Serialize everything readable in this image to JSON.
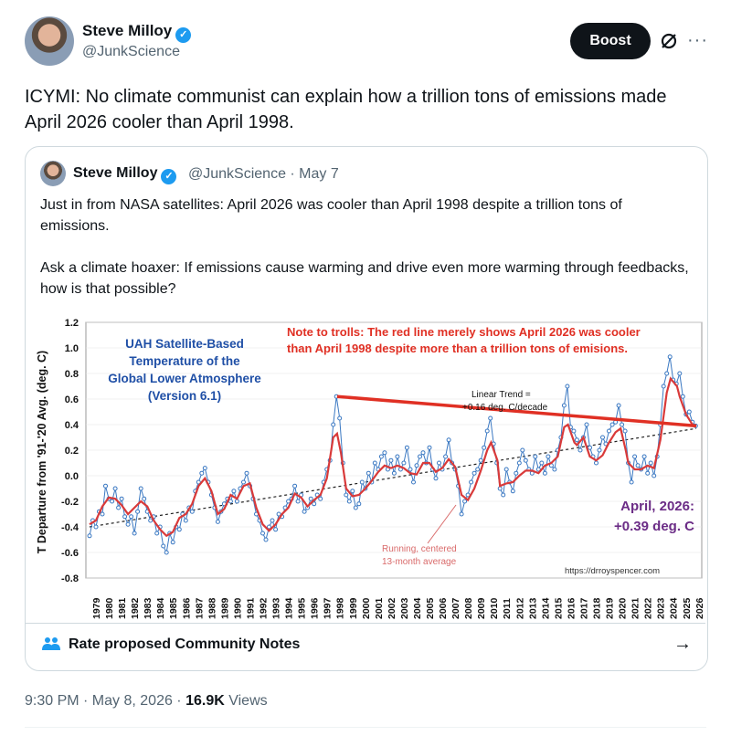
{
  "post": {
    "author_name": "Steve Milloy",
    "handle": "@JunkScience",
    "boost_label": "Boost",
    "more_label": "···",
    "text": "ICYMI: No climate communist can explain how a trillion tons of emissions made April 2026 cooler than April 1998."
  },
  "quote": {
    "author_name": "Steve Milloy",
    "handle_date": "@JunkScience · May 7",
    "text_p1": "Just in from NASA satellites: April 2026 was cooler than April 1998 despite a trillion tons of emissions.",
    "text_p2": "Ask a climate hoaxer: If emissions cause warming and drive even more warming through feedbacks, how is that possible?"
  },
  "chart_data": {
    "type": "line",
    "title": "UAH Satellite-Based Temperature of the Global Lower Atmosphere (Version 6.1)",
    "title_lines": [
      "UAH Satellite-Based",
      "Temperature of the",
      "Global Lower Atmosphere",
      "(Version 6.1)"
    ],
    "ylabel": "T Departure from '91-'20 Avg. (deg. C)",
    "ylim": [
      -0.8,
      1.2
    ],
    "y_ticks": [
      "1.2",
      "1.0",
      "0.8",
      "0.6",
      "0.4",
      "0.2",
      "0.0",
      "-0.2",
      "-0.4",
      "-0.6",
      "-0.8"
    ],
    "x_ticks": [
      "1979",
      "1980",
      "1981",
      "1982",
      "1983",
      "1984",
      "1985",
      "1986",
      "1987",
      "1988",
      "1989",
      "1990",
      "1991",
      "1992",
      "1993",
      "1994",
      "1995",
      "1996",
      "1997",
      "1998",
      "1999",
      "2000",
      "2001",
      "2002",
      "2003",
      "2004",
      "2005",
      "2006",
      "2007",
      "2008",
      "2009",
      "2010",
      "2011",
      "2012",
      "2013",
      "2014",
      "2015",
      "2016",
      "2017",
      "2018",
      "2019",
      "2020",
      "2021",
      "2022",
      "2023",
      "2024",
      "2025",
      "2026"
    ],
    "note_line1": "Note to trolls: The red line merely shows April 2026 was cooler",
    "note_line2": "than April 1998 despite more than a trillion tons of emisions.",
    "trend_label_1": "Linear Trend =",
    "trend_label_2": "+0.16 deg. C/decade",
    "running_label_1": "Running, centered",
    "running_label_2": "13-month average",
    "latest_label_1": "April, 2026:",
    "latest_label_2": "+0.39 deg. C",
    "credit": "https://drroyspencer.com",
    "trend_line": [
      [
        1979.0,
        -0.4
      ],
      [
        2026.3,
        0.37
      ]
    ],
    "red_line": [
      [
        1998.3,
        0.62
      ],
      [
        2026.3,
        0.39
      ]
    ],
    "running_mean": [
      [
        1979.0,
        -0.38
      ],
      [
        1979.5,
        -0.35
      ],
      [
        1980.0,
        -0.24
      ],
      [
        1980.5,
        -0.17
      ],
      [
        1981.0,
        -0.18
      ],
      [
        1981.5,
        -0.23
      ],
      [
        1982.0,
        -0.3
      ],
      [
        1982.5,
        -0.25
      ],
      [
        1983.0,
        -0.2
      ],
      [
        1983.5,
        -0.24
      ],
      [
        1984.0,
        -0.35
      ],
      [
        1984.5,
        -0.42
      ],
      [
        1985.0,
        -0.47
      ],
      [
        1985.5,
        -0.44
      ],
      [
        1986.0,
        -0.33
      ],
      [
        1986.5,
        -0.3
      ],
      [
        1987.0,
        -0.22
      ],
      [
        1987.5,
        -0.08
      ],
      [
        1988.0,
        -0.02
      ],
      [
        1988.5,
        -0.12
      ],
      [
        1989.0,
        -0.3
      ],
      [
        1989.5,
        -0.26
      ],
      [
        1990.0,
        -0.15
      ],
      [
        1990.5,
        -0.18
      ],
      [
        1991.0,
        -0.08
      ],
      [
        1991.5,
        -0.06
      ],
      [
        1992.0,
        -0.25
      ],
      [
        1992.5,
        -0.38
      ],
      [
        1993.0,
        -0.43
      ],
      [
        1993.5,
        -0.38
      ],
      [
        1994.0,
        -0.3
      ],
      [
        1994.5,
        -0.25
      ],
      [
        1995.0,
        -0.14
      ],
      [
        1995.5,
        -0.17
      ],
      [
        1996.0,
        -0.24
      ],
      [
        1996.5,
        -0.19
      ],
      [
        1997.0,
        -0.15
      ],
      [
        1997.5,
        -0.02
      ],
      [
        1998.0,
        0.3
      ],
      [
        1998.3,
        0.33
      ],
      [
        1998.6,
        0.18
      ],
      [
        1999.0,
        -0.1
      ],
      [
        1999.5,
        -0.16
      ],
      [
        2000.0,
        -0.15
      ],
      [
        2000.5,
        -0.1
      ],
      [
        2001.0,
        -0.04
      ],
      [
        2001.5,
        0.03
      ],
      [
        2002.0,
        0.08
      ],
      [
        2002.5,
        0.06
      ],
      [
        2003.0,
        0.08
      ],
      [
        2003.5,
        0.06
      ],
      [
        2004.0,
        0.02
      ],
      [
        2004.5,
        0.01
      ],
      [
        2005.0,
        0.1
      ],
      [
        2005.5,
        0.1
      ],
      [
        2006.0,
        0.03
      ],
      [
        2006.5,
        0.06
      ],
      [
        2007.0,
        0.13
      ],
      [
        2007.5,
        0.07
      ],
      [
        2008.0,
        -0.15
      ],
      [
        2008.5,
        -0.19
      ],
      [
        2009.0,
        -0.1
      ],
      [
        2009.5,
        0.04
      ],
      [
        2010.0,
        0.2
      ],
      [
        2010.3,
        0.26
      ],
      [
        2010.8,
        0.12
      ],
      [
        2011.0,
        -0.08
      ],
      [
        2011.5,
        -0.06
      ],
      [
        2012.0,
        -0.05
      ],
      [
        2012.5,
        0.0
      ],
      [
        2013.0,
        0.04
      ],
      [
        2013.5,
        0.04
      ],
      [
        2014.0,
        0.02
      ],
      [
        2014.5,
        0.08
      ],
      [
        2015.0,
        0.1
      ],
      [
        2015.5,
        0.15
      ],
      [
        2016.0,
        0.38
      ],
      [
        2016.3,
        0.4
      ],
      [
        2016.8,
        0.26
      ],
      [
        2017.0,
        0.24
      ],
      [
        2017.5,
        0.3
      ],
      [
        2018.0,
        0.15
      ],
      [
        2018.5,
        0.12
      ],
      [
        2019.0,
        0.16
      ],
      [
        2019.5,
        0.26
      ],
      [
        2020.0,
        0.34
      ],
      [
        2020.4,
        0.37
      ],
      [
        2020.8,
        0.2
      ],
      [
        2021.0,
        0.1
      ],
      [
        2021.5,
        0.05
      ],
      [
        2022.0,
        0.05
      ],
      [
        2022.5,
        0.08
      ],
      [
        2023.0,
        0.06
      ],
      [
        2023.5,
        0.28
      ],
      [
        2024.0,
        0.65
      ],
      [
        2024.3,
        0.76
      ],
      [
        2024.8,
        0.7
      ],
      [
        2025.0,
        0.62
      ],
      [
        2025.5,
        0.48
      ],
      [
        2026.0,
        0.4
      ],
      [
        2026.3,
        0.39
      ]
    ],
    "monthly": [
      [
        1979.0,
        -0.47
      ],
      [
        1979.25,
        -0.35
      ],
      [
        1979.5,
        -0.4
      ],
      [
        1979.75,
        -0.28
      ],
      [
        1980.0,
        -0.3
      ],
      [
        1980.25,
        -0.08
      ],
      [
        1980.5,
        -0.18
      ],
      [
        1980.75,
        -0.2
      ],
      [
        1981.0,
        -0.1
      ],
      [
        1981.25,
        -0.25
      ],
      [
        1981.5,
        -0.18
      ],
      [
        1981.75,
        -0.32
      ],
      [
        1982.0,
        -0.38
      ],
      [
        1982.25,
        -0.32
      ],
      [
        1982.5,
        -0.45
      ],
      [
        1982.75,
        -0.28
      ],
      [
        1983.0,
        -0.1
      ],
      [
        1983.25,
        -0.18
      ],
      [
        1983.5,
        -0.28
      ],
      [
        1983.75,
        -0.35
      ],
      [
        1984.0,
        -0.32
      ],
      [
        1984.25,
        -0.45
      ],
      [
        1984.5,
        -0.4
      ],
      [
        1984.75,
        -0.55
      ],
      [
        1985.0,
        -0.6
      ],
      [
        1985.25,
        -0.45
      ],
      [
        1985.5,
        -0.52
      ],
      [
        1985.75,
        -0.4
      ],
      [
        1986.0,
        -0.42
      ],
      [
        1986.25,
        -0.3
      ],
      [
        1986.5,
        -0.35
      ],
      [
        1986.75,
        -0.25
      ],
      [
        1987.0,
        -0.28
      ],
      [
        1987.25,
        -0.12
      ],
      [
        1987.5,
        -0.05
      ],
      [
        1987.75,
        0.02
      ],
      [
        1988.0,
        0.06
      ],
      [
        1988.25,
        -0.05
      ],
      [
        1988.5,
        -0.15
      ],
      [
        1988.75,
        -0.25
      ],
      [
        1989.0,
        -0.36
      ],
      [
        1989.25,
        -0.28
      ],
      [
        1989.5,
        -0.22
      ],
      [
        1989.75,
        -0.18
      ],
      [
        1990.0,
        -0.2
      ],
      [
        1990.25,
        -0.12
      ],
      [
        1990.5,
        -0.2
      ],
      [
        1990.75,
        -0.1
      ],
      [
        1991.0,
        -0.05
      ],
      [
        1991.25,
        0.02
      ],
      [
        1991.5,
        -0.08
      ],
      [
        1991.75,
        -0.18
      ],
      [
        1992.0,
        -0.3
      ],
      [
        1992.25,
        -0.35
      ],
      [
        1992.5,
        -0.45
      ],
      [
        1992.75,
        -0.5
      ],
      [
        1993.0,
        -0.4
      ],
      [
        1993.25,
        -0.35
      ],
      [
        1993.5,
        -0.42
      ],
      [
        1993.75,
        -0.3
      ],
      [
        1994.0,
        -0.32
      ],
      [
        1994.25,
        -0.25
      ],
      [
        1994.5,
        -0.2
      ],
      [
        1994.75,
        -0.18
      ],
      [
        1995.0,
        -0.08
      ],
      [
        1995.25,
        -0.2
      ],
      [
        1995.5,
        -0.15
      ],
      [
        1995.75,
        -0.28
      ],
      [
        1996.0,
        -0.25
      ],
      [
        1996.25,
        -0.18
      ],
      [
        1996.5,
        -0.22
      ],
      [
        1996.75,
        -0.15
      ],
      [
        1997.0,
        -0.18
      ],
      [
        1997.25,
        -0.05
      ],
      [
        1997.5,
        0.05
      ],
      [
        1997.75,
        0.12
      ],
      [
        1998.0,
        0.4
      ],
      [
        1998.25,
        0.62
      ],
      [
        1998.5,
        0.45
      ],
      [
        1998.75,
        0.1
      ],
      [
        1999.0,
        -0.15
      ],
      [
        1999.25,
        -0.2
      ],
      [
        1999.5,
        -0.12
      ],
      [
        1999.75,
        -0.25
      ],
      [
        2000.0,
        -0.22
      ],
      [
        2000.25,
        -0.05
      ],
      [
        2000.5,
        -0.1
      ],
      [
        2000.75,
        0.02
      ],
      [
        2001.0,
        -0.05
      ],
      [
        2001.25,
        0.1
      ],
      [
        2001.5,
        0.05
      ],
      [
        2001.75,
        0.15
      ],
      [
        2002.0,
        0.18
      ],
      [
        2002.25,
        0.05
      ],
      [
        2002.5,
        0.12
      ],
      [
        2002.75,
        0.02
      ],
      [
        2003.0,
        0.15
      ],
      [
        2003.25,
        0.05
      ],
      [
        2003.5,
        0.1
      ],
      [
        2003.75,
        0.22
      ],
      [
        2004.0,
        0.05
      ],
      [
        2004.25,
        -0.05
      ],
      [
        2004.5,
        0.08
      ],
      [
        2004.75,
        0.15
      ],
      [
        2005.0,
        0.18
      ],
      [
        2005.25,
        0.1
      ],
      [
        2005.5,
        0.22
      ],
      [
        2005.75,
        0.05
      ],
      [
        2006.0,
        -0.02
      ],
      [
        2006.25,
        0.1
      ],
      [
        2006.5,
        0.05
      ],
      [
        2006.75,
        0.15
      ],
      [
        2007.0,
        0.28
      ],
      [
        2007.25,
        0.1
      ],
      [
        2007.5,
        0.05
      ],
      [
        2007.75,
        -0.08
      ],
      [
        2008.0,
        -0.3
      ],
      [
        2008.25,
        -0.2
      ],
      [
        2008.5,
        -0.15
      ],
      [
        2008.75,
        -0.05
      ],
      [
        2009.0,
        0.02
      ],
      [
        2009.25,
        0.05
      ],
      [
        2009.5,
        0.12
      ],
      [
        2009.75,
        0.22
      ],
      [
        2010.0,
        0.35
      ],
      [
        2010.25,
        0.45
      ],
      [
        2010.5,
        0.25
      ],
      [
        2010.75,
        0.1
      ],
      [
        2011.0,
        -0.1
      ],
      [
        2011.25,
        -0.15
      ],
      [
        2011.5,
        0.05
      ],
      [
        2011.75,
        -0.05
      ],
      [
        2012.0,
        -0.12
      ],
      [
        2012.25,
        0.02
      ],
      [
        2012.5,
        0.1
      ],
      [
        2012.75,
        0.2
      ],
      [
        2013.0,
        0.12
      ],
      [
        2013.25,
        0.05
      ],
      [
        2013.5,
        0.02
      ],
      [
        2013.75,
        0.15
      ],
      [
        2014.0,
        0.05
      ],
      [
        2014.25,
        0.1
      ],
      [
        2014.5,
        0.02
      ],
      [
        2014.75,
        0.15
      ],
      [
        2015.0,
        0.08
      ],
      [
        2015.25,
        0.05
      ],
      [
        2015.5,
        0.2
      ],
      [
        2015.75,
        0.3
      ],
      [
        2016.0,
        0.55
      ],
      [
        2016.25,
        0.7
      ],
      [
        2016.5,
        0.38
      ],
      [
        2016.75,
        0.35
      ],
      [
        2017.0,
        0.28
      ],
      [
        2017.25,
        0.2
      ],
      [
        2017.5,
        0.3
      ],
      [
        2017.75,
        0.4
      ],
      [
        2018.0,
        0.22
      ],
      [
        2018.25,
        0.15
      ],
      [
        2018.5,
        0.1
      ],
      [
        2018.75,
        0.2
      ],
      [
        2019.0,
        0.3
      ],
      [
        2019.25,
        0.25
      ],
      [
        2019.5,
        0.35
      ],
      [
        2019.75,
        0.4
      ],
      [
        2020.0,
        0.42
      ],
      [
        2020.25,
        0.55
      ],
      [
        2020.5,
        0.4
      ],
      [
        2020.75,
        0.35
      ],
      [
        2021.0,
        0.1
      ],
      [
        2021.25,
        -0.05
      ],
      [
        2021.5,
        0.15
      ],
      [
        2021.75,
        0.08
      ],
      [
        2022.0,
        0.05
      ],
      [
        2022.25,
        0.15
      ],
      [
        2022.5,
        0.02
      ],
      [
        2022.75,
        0.1
      ],
      [
        2023.0,
        0.0
      ],
      [
        2023.25,
        0.15
      ],
      [
        2023.5,
        0.4
      ],
      [
        2023.75,
        0.7
      ],
      [
        2024.0,
        0.8
      ],
      [
        2024.25,
        0.93
      ],
      [
        2024.5,
        0.75
      ],
      [
        2024.75,
        0.72
      ],
      [
        2025.0,
        0.8
      ],
      [
        2025.25,
        0.62
      ],
      [
        2025.5,
        0.48
      ],
      [
        2025.75,
        0.5
      ],
      [
        2026.0,
        0.42
      ],
      [
        2026.25,
        0.39
      ]
    ],
    "colors": {
      "data": "#3a78c2",
      "running": "#d93a3a",
      "red_line": "#e03024",
      "trend": "#222222",
      "note": "#e03024",
      "title": "#1f4fa6",
      "latest": "#6b2c86",
      "running_label": "#d96a6a"
    }
  },
  "notes": {
    "label": "Rate proposed Community Notes",
    "arrow": "→"
  },
  "footer": {
    "time_date": "9:30 PM · May 8, 2026 · ",
    "views_count": "16.9K",
    "views_label": " Views"
  }
}
